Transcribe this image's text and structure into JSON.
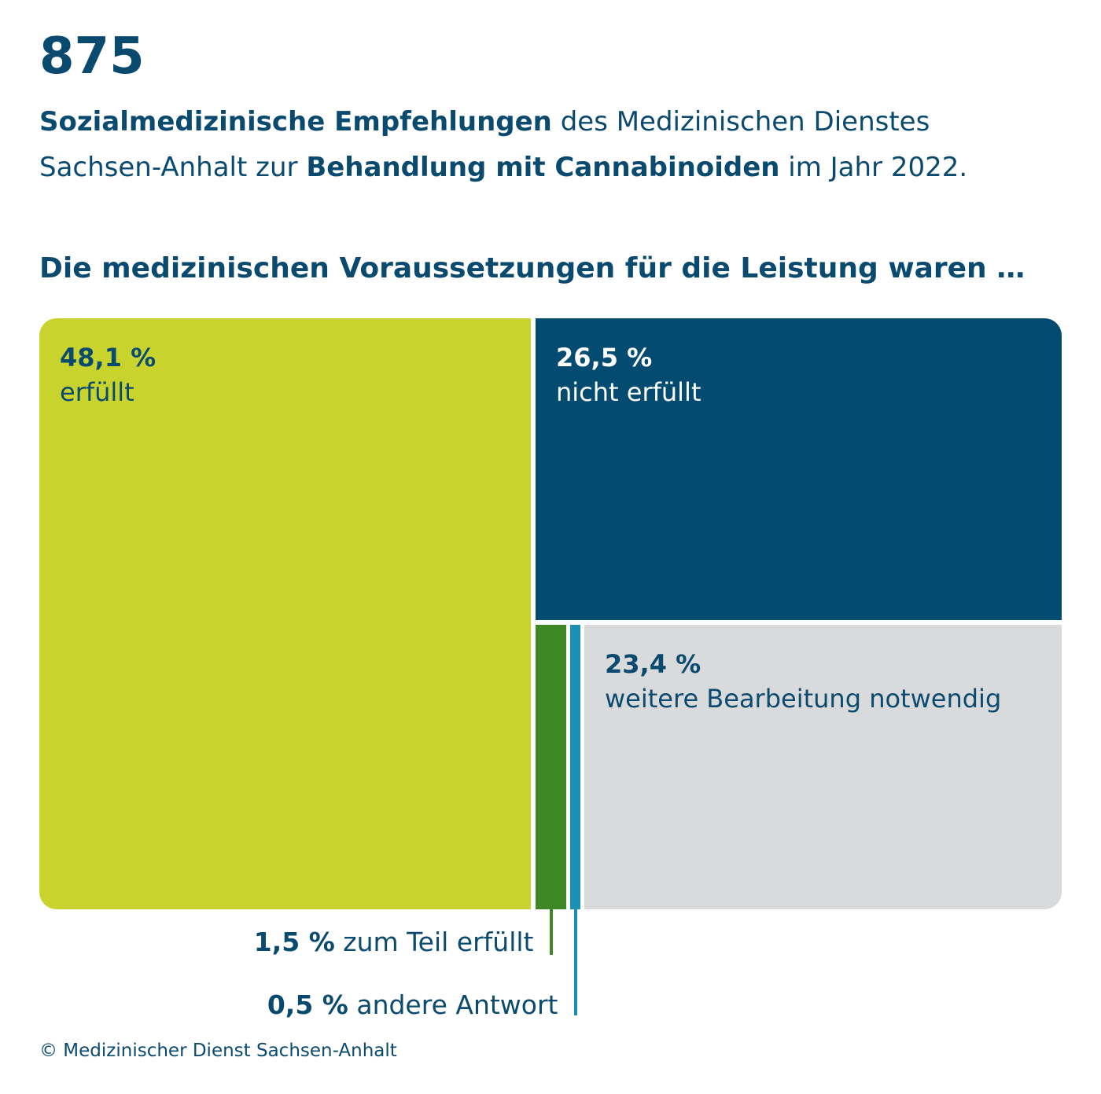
{
  "header": {
    "big_number": "875",
    "line1_bold": "Sozialmedizinische Empfehlungen",
    "line1_rest": " des Medizinischen Dienstes",
    "line2_start": "Sachsen-Anhalt zur ",
    "line2_bold": "Behandlung mit Cannabinoiden",
    "line2_end": " im Jahr 2022."
  },
  "chart_data": {
    "type": "treemap",
    "title": "Die medizinischen Voraussetzungen für die Leistung waren …",
    "unit": "%",
    "categories": [
      "erfüllt",
      "nicht erfüllt",
      "weitere Bearbeitung notwendig",
      "zum Teil erfüllt",
      "andere Antwort"
    ],
    "values": [
      48.1,
      26.5,
      23.4,
      1.5,
      0.5
    ],
    "labels": [
      "48,1 %",
      "26,5 %",
      "23,4 %",
      "1,5 %",
      "0,5 %"
    ],
    "colors": [
      "#c8d42d",
      "#044b71",
      "#d9dadb",
      "#3e8826",
      "#1c8fb5"
    ],
    "text_colors": [
      "#0b4a6f",
      "#ffffff",
      "#0b4a6f",
      "#0b4a6f",
      "#0b4a6f"
    ]
  },
  "source": "© Medizinischer Dienst Sachsen-Anhalt"
}
